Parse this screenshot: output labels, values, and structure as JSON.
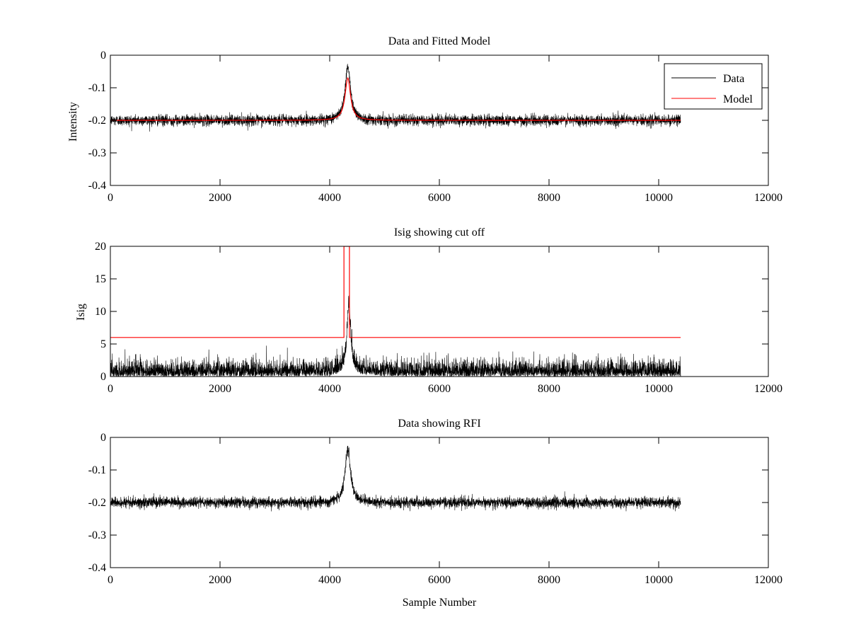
{
  "colors": {
    "data": "#000000",
    "model": "#ff0000",
    "axes": "#000000",
    "background": "#ffffff"
  },
  "chart_data": [
    {
      "type": "line",
      "title": "Data and Fitted Model",
      "xlabel": "",
      "ylabel": "Intensity",
      "xlim": [
        0,
        12000
      ],
      "ylim": [
        -0.4,
        0
      ],
      "xticks": [
        0,
        2000,
        4000,
        6000,
        8000,
        10000,
        12000
      ],
      "xtick_labels": [
        "0",
        "2000",
        "4000",
        "6000",
        "8000",
        "10000",
        "12000"
      ],
      "yticks": [
        -0.4,
        -0.3,
        -0.2,
        -0.1,
        0
      ],
      "ytick_labels": [
        "-0.4",
        "-0.3",
        "-0.2",
        "-0.1",
        "0"
      ],
      "grid": false,
      "legend_position": "top-right",
      "series": [
        {
          "name": "Data",
          "color": "#000000",
          "kind": "noisy",
          "x_range": [
            0,
            10400
          ],
          "baseline": -0.2,
          "noise_amplitude": 0.015,
          "peak": {
            "x": 4330,
            "y": -0.035,
            "width": 60
          },
          "sample_points": [
            [
              0,
              -0.2
            ],
            [
              2000,
              -0.2
            ],
            [
              4000,
              -0.19
            ],
            [
              4200,
              -0.17
            ],
            [
              4330,
              -0.035
            ],
            [
              4500,
              -0.2
            ],
            [
              6000,
              -0.2
            ],
            [
              8000,
              -0.195
            ],
            [
              10400,
              -0.2
            ]
          ]
        },
        {
          "name": "Model",
          "color": "#ff0000",
          "kind": "smooth",
          "x_range": [
            0,
            10400
          ],
          "baseline": -0.2,
          "peak": {
            "x": 4330,
            "y": -0.07,
            "width": 60
          },
          "sample_points": [
            [
              0,
              -0.2
            ],
            [
              4000,
              -0.195
            ],
            [
              4200,
              -0.18
            ],
            [
              4330,
              -0.07
            ],
            [
              4450,
              -0.19
            ],
            [
              10400,
              -0.2
            ]
          ]
        }
      ]
    },
    {
      "type": "line",
      "title": "Isig showing cut off",
      "xlabel": "",
      "ylabel": "Isig",
      "xlim": [
        0,
        12000
      ],
      "ylim": [
        0,
        20
      ],
      "xticks": [
        0,
        2000,
        4000,
        6000,
        8000,
        10000,
        12000
      ],
      "xtick_labels": [
        "0",
        "2000",
        "4000",
        "6000",
        "8000",
        "10000",
        "12000"
      ],
      "yticks": [
        0,
        5,
        10,
        15,
        20
      ],
      "ytick_labels": [
        "0",
        "5",
        "10",
        "15",
        "20"
      ],
      "grid": false,
      "series": [
        {
          "color": "#000000",
          "kind": "abs-noise",
          "x_range": [
            0,
            10400
          ],
          "baseline": 0,
          "noise_amplitude": 2.2,
          "peak": {
            "x": 4350,
            "y": 10.5,
            "width": 40
          }
        },
        {
          "color": "#ff0000",
          "kind": "step",
          "points": [
            [
              0,
              6
            ],
            [
              4260,
              6
            ],
            [
              4260,
              20
            ],
            [
              4360,
              20
            ],
            [
              4360,
              6
            ],
            [
              10400,
              6
            ]
          ]
        }
      ]
    },
    {
      "type": "line",
      "title": "Data showing RFI",
      "xlabel": "Sample Number",
      "ylabel": "",
      "xlim": [
        0,
        12000
      ],
      "ylim": [
        -0.4,
        0
      ],
      "xticks": [
        0,
        2000,
        4000,
        6000,
        8000,
        10000,
        12000
      ],
      "xtick_labels": [
        "0",
        "2000",
        "4000",
        "6000",
        "8000",
        "10000",
        "12000"
      ],
      "yticks": [
        -0.4,
        -0.3,
        -0.2,
        -0.1,
        0
      ],
      "ytick_labels": [
        "-0.4",
        "-0.3",
        "-0.2",
        "-0.1",
        "0"
      ],
      "grid": false,
      "series": [
        {
          "color": "#000000",
          "kind": "noisy",
          "x_range": [
            0,
            10400
          ],
          "baseline": -0.2,
          "noise_amplitude": 0.015,
          "peak": {
            "x": 4330,
            "y": -0.035,
            "width": 60
          }
        }
      ]
    }
  ]
}
